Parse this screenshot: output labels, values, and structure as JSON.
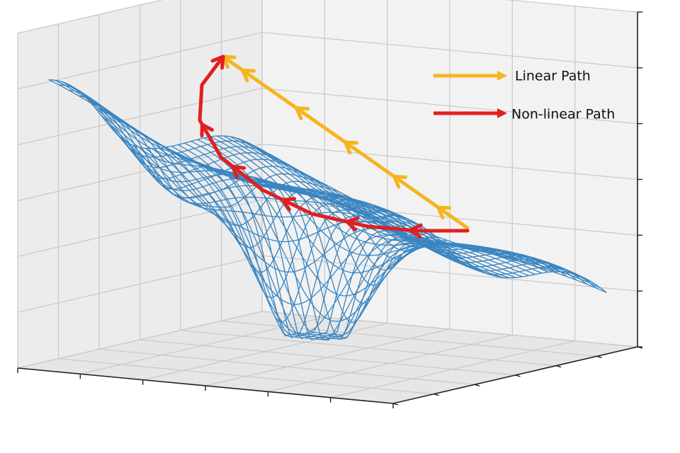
{
  "legend": {
    "items": [
      {
        "label": "Linear Path"
      },
      {
        "label": "Non-linear Path"
      }
    ]
  }
}
